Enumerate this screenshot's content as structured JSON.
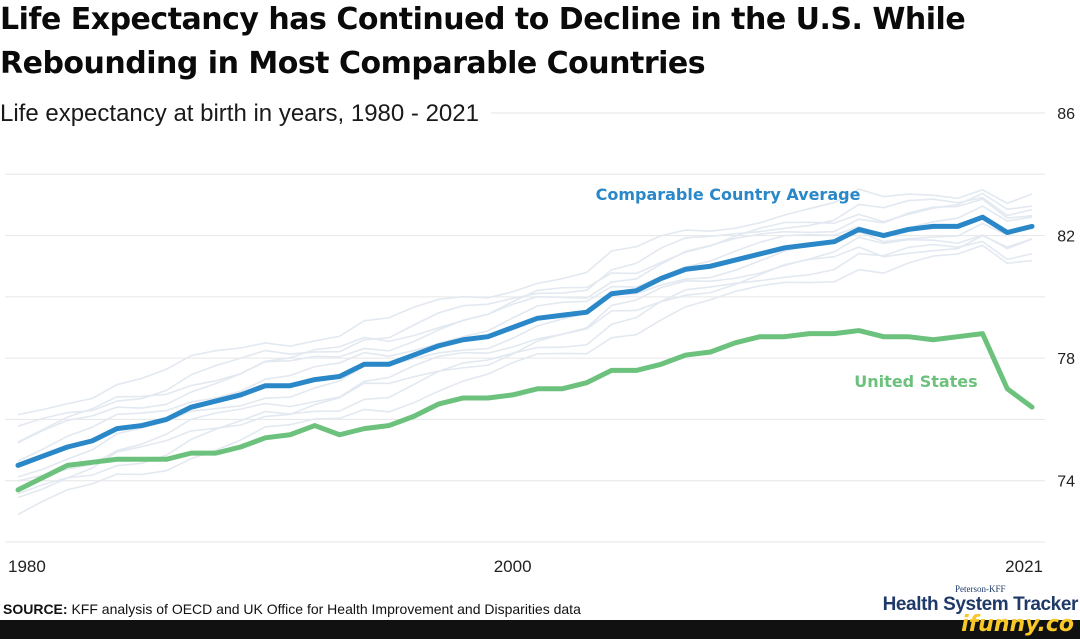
{
  "header": {
    "title_line1": "Life Expectancy has Continued to Decline in the U.S. While",
    "title_line2": "Rebounding in Most Comparable Countries",
    "subtitle": "Life expectancy at birth in years, 1980 - 2021"
  },
  "footer": {
    "source_label": "SOURCE:",
    "source_text": "KFF analysis of OECD and UK Office for Health Improvement and Disparities data",
    "brand_top": "Peterson-KFF",
    "brand_main": "Health System Tracker",
    "watermark": "ifunny.co"
  },
  "chart_data": {
    "type": "line",
    "title": "Life Expectancy has Continued to Decline in the U.S. While Rebounding in Most Comparable Countries",
    "subtitle": "Life expectancy at birth in years, 1980 - 2021",
    "xlim": [
      1980,
      2021
    ],
    "ylim": [
      72,
      86
    ],
    "y_ticks": [
      86,
      82,
      78,
      74
    ],
    "x_ticks": [
      {
        "value": 1980,
        "label": "1980"
      },
      {
        "value": 2000,
        "label": "2000"
      },
      {
        "value": 2021,
        "label": "2021"
      }
    ],
    "grid": true,
    "x": [
      1980,
      1981,
      1982,
      1983,
      1984,
      1985,
      1986,
      1987,
      1988,
      1989,
      1990,
      1991,
      1992,
      1993,
      1994,
      1995,
      1996,
      1997,
      1998,
      1999,
      2000,
      2001,
      2002,
      2003,
      2004,
      2005,
      2006,
      2007,
      2008,
      2009,
      2010,
      2011,
      2012,
      2013,
      2014,
      2015,
      2016,
      2017,
      2018,
      2019,
      2020,
      2021
    ],
    "series": [
      {
        "name": "Comparable Country Average",
        "label": "Comparable Country Average",
        "color": "#2a87c8",
        "values": [
          74.5,
          74.8,
          75.1,
          75.3,
          75.7,
          75.8,
          76.0,
          76.4,
          76.6,
          76.8,
          77.1,
          77.1,
          77.3,
          77.4,
          77.8,
          77.8,
          78.1,
          78.4,
          78.6,
          78.7,
          79.0,
          79.3,
          79.4,
          79.5,
          80.1,
          80.2,
          80.6,
          80.9,
          81.0,
          81.2,
          81.4,
          81.6,
          81.7,
          81.8,
          82.2,
          82.0,
          82.2,
          82.3,
          82.3,
          82.6,
          82.1,
          82.3
        ]
      },
      {
        "name": "United States",
        "label": "United States",
        "color": "#6cc27d",
        "values": [
          73.7,
          74.1,
          74.5,
          74.6,
          74.7,
          74.7,
          74.7,
          74.9,
          74.9,
          75.1,
          75.4,
          75.5,
          75.8,
          75.5,
          75.7,
          75.8,
          76.1,
          76.5,
          76.7,
          76.7,
          76.8,
          77.0,
          77.0,
          77.2,
          77.6,
          77.6,
          77.8,
          78.1,
          78.2,
          78.5,
          78.7,
          78.7,
          78.8,
          78.8,
          78.9,
          78.7,
          78.7,
          78.6,
          78.7,
          78.8,
          77.0,
          76.4
        ]
      }
    ]
  }
}
